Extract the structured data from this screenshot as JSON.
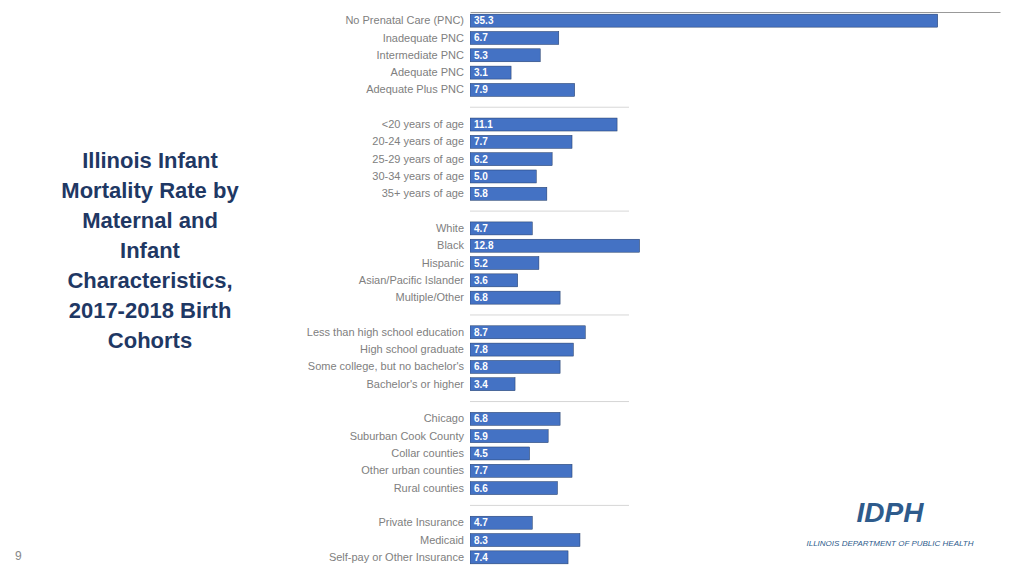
{
  "chart_data": {
    "type": "bar",
    "orientation": "horizontal",
    "title": "Illinois Infant\nMortality Rate by\nMaternal and\nInfant\nCharacteristics,\n2017-2018 Birth\nCohorts",
    "categories": [
      "No Prenatal Care (PNC)",
      "Inadequate PNC",
      "Intermediate PNC",
      "Adequate PNC",
      "Adequate Plus PNC",
      null,
      "<20 years of age",
      "20-24 years of age",
      "25-29 years of age",
      "30-34 years of age",
      "35+ years of age",
      null,
      "White",
      "Black",
      "Hispanic",
      "Asian/Pacific Islander",
      "Multiple/Other",
      null,
      "Less than high school education",
      "High school graduate",
      "Some college, but no bachelor's",
      "Bachelor's or higher",
      null,
      "Chicago",
      "Suburban Cook County",
      "Collar counties",
      "Other urban counties",
      "Rural counties",
      null,
      "Private Insurance",
      "Medicaid",
      "Self-pay or Other Insurance"
    ],
    "values": [
      35.3,
      6.7,
      5.3,
      3.1,
      7.9,
      null,
      11.1,
      7.7,
      6.2,
      5.0,
      5.8,
      null,
      4.7,
      12.8,
      5.2,
      3.6,
      6.8,
      null,
      8.7,
      7.8,
      6.8,
      3.4,
      null,
      6.8,
      5.9,
      4.5,
      7.7,
      6.6,
      null,
      4.7,
      8.3,
      7.4
    ],
    "value_labels": [
      "35.3",
      "6.7",
      "5.3",
      "3.1",
      "7.9",
      null,
      "11.1",
      "7.7",
      "6.2",
      "5.0",
      "5.8",
      null,
      "4.7",
      "12.8",
      "5.2",
      "3.6",
      "6.8",
      null,
      "8.7",
      "7.8",
      "6.8",
      "3.4",
      null,
      "6.8",
      "5.9",
      "4.5",
      "7.7",
      "6.6",
      null,
      "4.7",
      "8.3",
      "7.4"
    ],
    "color": "#4472C4",
    "xlim": [
      0,
      40
    ],
    "data_labels": true,
    "tick_labels": "y",
    "grid": false,
    "annotations": [
      "9",
      "IDPH",
      "ILLINOIS DEPARTMENT OF PUBLIC HEALTH"
    ]
  }
}
